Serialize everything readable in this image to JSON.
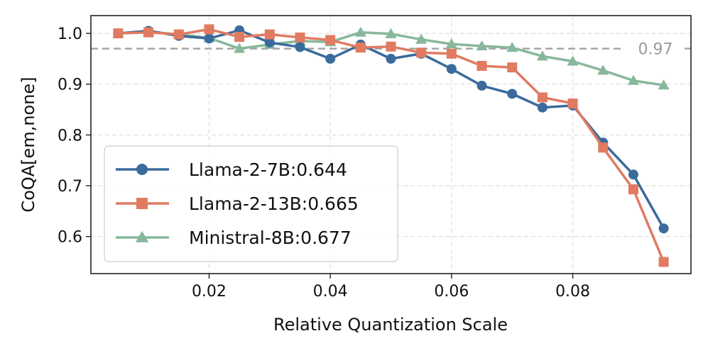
{
  "chart_data": {
    "type": "line",
    "title": "",
    "xlabel": "Relative Quantization Scale",
    "ylabel": "CoQA[em,none]",
    "xlim": [
      0.0005,
      0.0995
    ],
    "ylim": [
      0.527,
      1.035
    ],
    "xticks": [
      0.02,
      0.04,
      0.06,
      0.08
    ],
    "xtick_labels": [
      "0.02",
      "0.04",
      "0.06",
      "0.08"
    ],
    "yticks": [
      0.6,
      0.7,
      0.8,
      0.9,
      1.0
    ],
    "ytick_labels": [
      "0.6",
      "0.7",
      "0.8",
      "0.9",
      "1.0"
    ],
    "grid": true,
    "legend_position": "lower-left",
    "reference_line": {
      "value": 0.97,
      "label": "0.97",
      "color": "#a6a6a6"
    },
    "x": [
      0.005,
      0.01,
      0.015,
      0.02,
      0.025,
      0.03,
      0.035,
      0.04,
      0.045,
      0.05,
      0.055,
      0.06,
      0.065,
      0.07,
      0.075,
      0.08,
      0.085,
      0.09,
      0.095
    ],
    "series": [
      {
        "name": "Llama-2-7B:0.644",
        "color": "#3a6b9c",
        "marker": "circle",
        "values": [
          1.0,
          1.005,
          0.995,
          0.99,
          1.006,
          0.982,
          0.973,
          0.95,
          0.978,
          0.95,
          0.96,
          0.93,
          0.897,
          0.881,
          0.854,
          0.858,
          0.785,
          0.722,
          0.616
        ]
      },
      {
        "name": "Llama-2-13B:0.665",
        "color": "#e07b62",
        "marker": "square",
        "values": [
          1.0,
          1.002,
          0.998,
          1.008,
          0.993,
          0.998,
          0.992,
          0.987,
          0.972,
          0.974,
          0.962,
          0.96,
          0.936,
          0.933,
          0.874,
          0.862,
          0.775,
          0.693,
          0.55
        ]
      },
      {
        "name": "Ministral-8B:0.677",
        "color": "#87b89b",
        "marker": "triangle",
        "values": [
          1.0,
          1.003,
          0.998,
          0.991,
          0.97,
          0.978,
          0.985,
          0.983,
          1.002,
          0.999,
          0.988,
          0.979,
          0.975,
          0.972,
          0.955,
          0.945,
          0.927,
          0.907,
          0.898
        ]
      }
    ]
  }
}
